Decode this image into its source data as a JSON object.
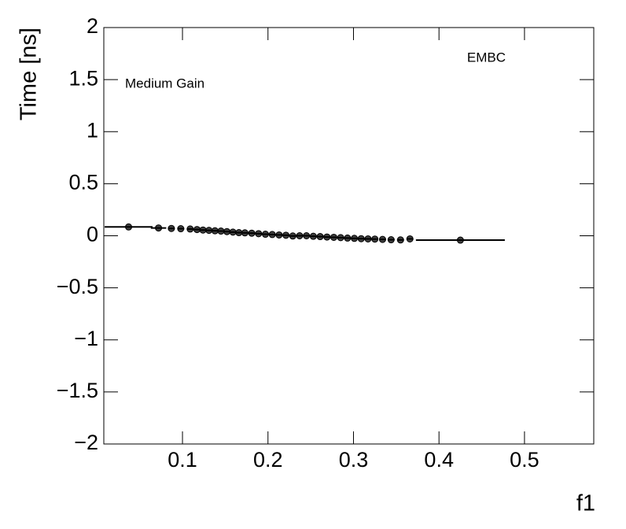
{
  "chart_data": {
    "type": "scatter",
    "x_label": "f1",
    "y_label": "Time [ns]",
    "annotations": [
      "EMBC",
      "Medium Gain"
    ],
    "color": "#000000",
    "x": [
      0.037,
      0.072,
      0.087,
      0.098,
      0.109,
      0.117,
      0.124,
      0.131,
      0.138,
      0.145,
      0.152,
      0.159,
      0.166,
      0.173,
      0.181,
      0.189,
      0.197,
      0.205,
      0.213,
      0.221,
      0.229,
      0.237,
      0.245,
      0.253,
      0.261,
      0.269,
      0.277,
      0.285,
      0.293,
      0.301,
      0.309,
      0.317,
      0.325,
      0.334,
      0.344,
      0.355,
      0.366,
      0.425
    ],
    "x_err": [
      0.028,
      0.009,
      0.004,
      0.004,
      0.004,
      0.004,
      0.004,
      0.004,
      0.004,
      0.004,
      0.004,
      0.004,
      0.004,
      0.004,
      0.004,
      0.004,
      0.004,
      0.004,
      0.004,
      0.004,
      0.004,
      0.004,
      0.004,
      0.004,
      0.004,
      0.004,
      0.004,
      0.004,
      0.004,
      0.004,
      0.004,
      0.004,
      0.004,
      0.004,
      0.004,
      0.004,
      0.004,
      0.052
    ],
    "values": [
      0.085,
      0.075,
      0.07,
      0.068,
      0.065,
      0.06,
      0.055,
      0.052,
      0.048,
      0.045,
      0.04,
      0.035,
      0.03,
      0.028,
      0.025,
      0.02,
      0.015,
      0.012,
      0.008,
      0.005,
      -0.002,
      0,
      0,
      -0.005,
      -0.008,
      -0.012,
      -0.015,
      -0.018,
      -0.022,
      -0.025,
      -0.028,
      -0.03,
      -0.032,
      -0.035,
      -0.038,
      -0.04,
      -0.03,
      -0.042
    ],
    "xlim": [
      0.008,
      0.581
    ],
    "xticks": [
      0.1,
      0.2,
      0.3,
      0.4,
      0.5
    ],
    "ylim": [
      -2,
      2
    ],
    "yticks": [
      {
        "value": -2,
        "label": "−2"
      },
      {
        "value": -1.5,
        "label": "−1.5"
      },
      {
        "value": -1,
        "label": "−1"
      },
      {
        "value": -0.5,
        "label": "−0.5"
      },
      0,
      0.5,
      1,
      1.5,
      2
    ]
  }
}
